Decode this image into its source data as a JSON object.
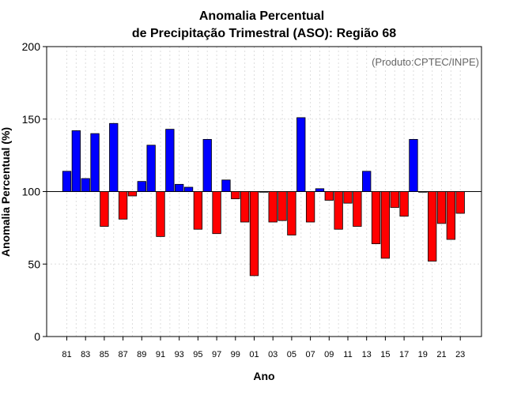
{
  "chart_data": {
    "type": "bar",
    "title": "Anomalia Percentual",
    "subtitle": "de Precipitação Trimestral (ASO): Região 68",
    "xlabel": "Ano",
    "ylabel": "Anomalia Percentual (%)",
    "annotation": "(Produto:CPTEC/INPE)",
    "baseline": 100,
    "ylim": [
      0,
      200
    ],
    "yticks": [
      0,
      50,
      100,
      150,
      200
    ],
    "xtick_labels": [
      "81",
      "83",
      "85",
      "87",
      "89",
      "91",
      "93",
      "95",
      "97",
      "99",
      "01",
      "03",
      "05",
      "07",
      "09",
      "11",
      "13",
      "15",
      "17",
      "19",
      "21",
      "23"
    ],
    "grid": true,
    "colors": {
      "above": "#0000ff",
      "below": "#ff0000",
      "edge": "#000000",
      "grid": "#dddddd"
    },
    "categories": [
      "81",
      "82",
      "83",
      "84",
      "85",
      "86",
      "87",
      "88",
      "89",
      "90",
      "91",
      "92",
      "93",
      "94",
      "95",
      "96",
      "97",
      "98",
      "99",
      "00",
      "01",
      "02",
      "03",
      "04",
      "05",
      "06",
      "07",
      "08",
      "09",
      "10",
      "11",
      "12",
      "13",
      "14",
      "15",
      "16",
      "17",
      "18",
      "19",
      "20",
      "21",
      "22",
      "23"
    ],
    "values": [
      114,
      142,
      109,
      140,
      76,
      147,
      81,
      97,
      107,
      132,
      69,
      143,
      105,
      103,
      74,
      136,
      71,
      108,
      95,
      79,
      42,
      100,
      79,
      80,
      70,
      151,
      79,
      102,
      94,
      74,
      92,
      76,
      114,
      64,
      54,
      89,
      83,
      136,
      100,
      52,
      78,
      67,
      85
    ]
  }
}
